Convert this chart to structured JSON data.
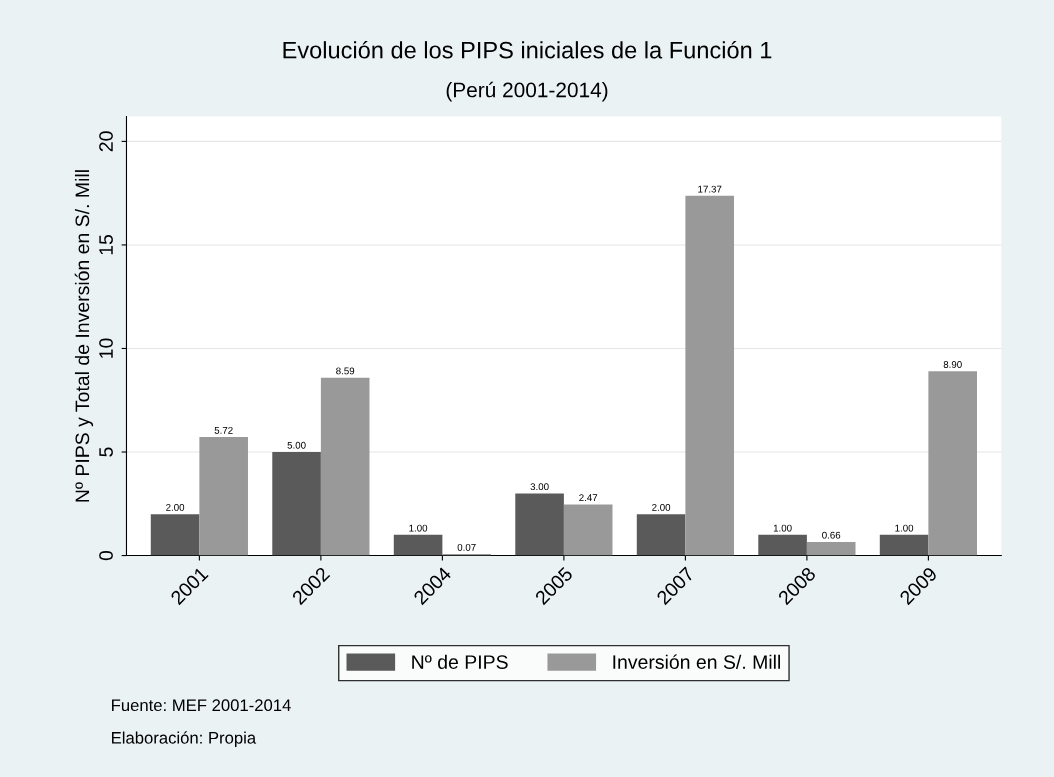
{
  "chart_data": {
    "type": "bar",
    "title": "Evolución de los PIPS iniciales de la Función 1",
    "subtitle": "(Perú 2001-2014)",
    "ylabel": "Nº PIPS y Total de Inversión en S/. Mill",
    "categories": [
      "2001",
      "2002",
      "2004",
      "2005",
      "2007",
      "2008",
      "2009"
    ],
    "series": [
      {
        "name": "Nº de PIPS",
        "color": "#5a5a5a",
        "values": [
          2.0,
          5.0,
          1.0,
          3.0,
          2.0,
          1.0,
          1.0
        ],
        "value_labels": [
          "2.00",
          "5.00",
          "1.00",
          "3.00",
          "2.00",
          "1.00",
          "1.00"
        ]
      },
      {
        "name": "Inversión en S/. Mill",
        "color": "#999999",
        "values": [
          5.72,
          8.59,
          0.07,
          2.47,
          17.37,
          0.66,
          8.9
        ],
        "value_labels": [
          "5.72",
          "8.59",
          "0.07",
          "2.47",
          "17.37",
          "0.66",
          "8.90"
        ]
      }
    ],
    "ylim": [
      0,
      21.2
    ],
    "yticks": [
      0,
      5,
      10,
      15,
      20
    ],
    "grid": "y",
    "legend": "bottom",
    "annotations": [
      "Fuente: MEF 2001-2014",
      "Elaboración: Propia"
    ]
  }
}
